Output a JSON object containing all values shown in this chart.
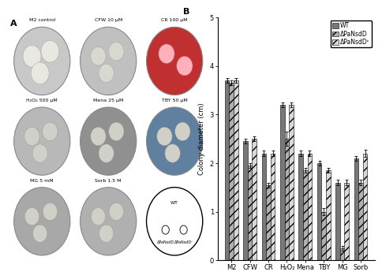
{
  "categories": [
    "M2",
    "CFW",
    "CR",
    "H₂O₂",
    "Mena",
    "TBY",
    "MG",
    "Sorb"
  ],
  "wt": [
    3.7,
    2.45,
    2.2,
    3.2,
    2.2,
    2.0,
    1.6,
    2.1
  ],
  "mut1": [
    3.65,
    1.95,
    1.55,
    2.5,
    1.85,
    1.0,
    0.25,
    1.6
  ],
  "mut2": [
    3.7,
    2.5,
    2.2,
    3.2,
    2.2,
    1.85,
    1.6,
    2.2
  ],
  "wt_err": [
    0.05,
    0.05,
    0.05,
    0.05,
    0.05,
    0.05,
    0.05,
    0.05
  ],
  "mut1_err": [
    0.05,
    0.05,
    0.05,
    0.15,
    0.05,
    0.08,
    0.05,
    0.05
  ],
  "mut2_err": [
    0.05,
    0.05,
    0.05,
    0.05,
    0.05,
    0.05,
    0.05,
    0.08
  ],
  "color_wt": "#787878",
  "color_mut1": "#b0b0b0",
  "color_mut2": "#d8d8d8",
  "ylabel": "Colony diameter (cm)",
  "ylim": [
    0,
    5
  ],
  "yticks": [
    0,
    1,
    2,
    3,
    4,
    5
  ],
  "legend_labels": [
    "WT",
    "ΔPaNsdD",
    "ΔPaNsdDᶜ"
  ],
  "panel_label_A": "A",
  "panel_label_B": "B",
  "bar_width": 0.24,
  "axis_fontsize": 6,
  "legend_fontsize": 5.5,
  "plate_labels": [
    [
      "M2 control",
      "CFW 10 μM",
      "CR 100 μM"
    ],
    [
      "H₂O₂ 500 μM",
      "Mena 25 μM",
      "TBY 50 μM"
    ],
    [
      "MG 5 mM",
      "Sorb 1.5 M",
      ""
    ]
  ],
  "plate_colors": [
    [
      "#c8c8c8",
      "#c0c0c0",
      "#c03030"
    ],
    [
      "#b8b8b8",
      "#909090",
      "#6080a0"
    ],
    [
      "#a8a8a8",
      "#b0b0b0",
      "white"
    ]
  ],
  "bg_color": "#f0f0f0"
}
